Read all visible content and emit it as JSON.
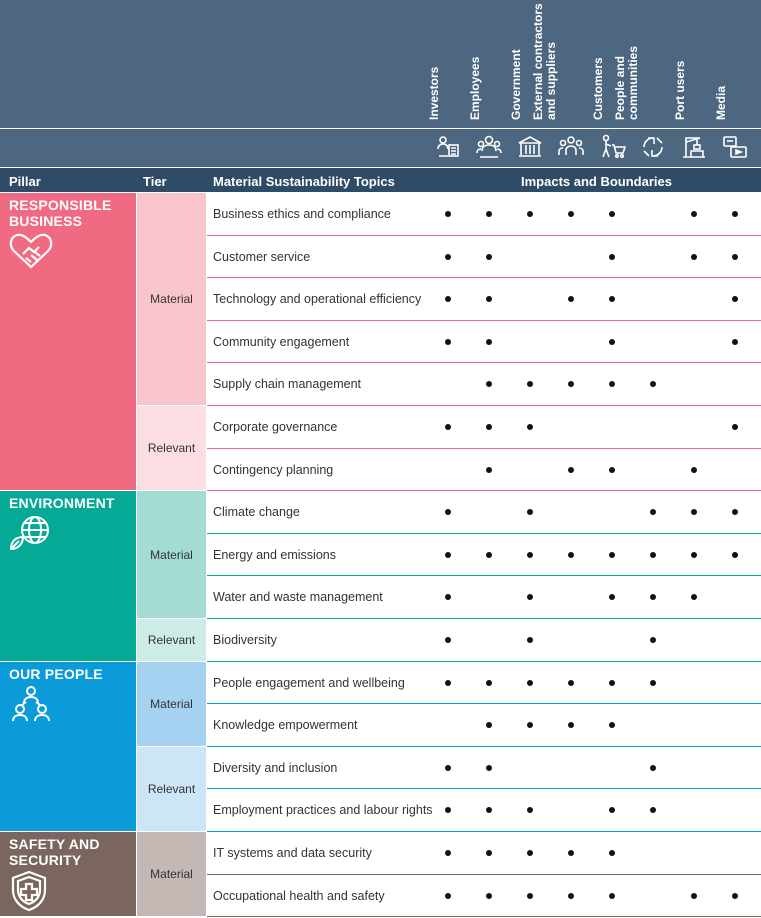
{
  "header": {
    "stakeholders": [
      {
        "label_lines": [
          "Investors"
        ],
        "icon": "investor-icon"
      },
      {
        "label_lines": [
          "Employees"
        ],
        "icon": "employees-icon"
      },
      {
        "label_lines": [
          "Government"
        ],
        "icon": "government-building-icon"
      },
      {
        "label_lines": [
          "External contractors",
          "and suppliers"
        ],
        "icon": "contractors-icon"
      },
      {
        "label_lines": [
          "Customers"
        ],
        "icon": "customer-cart-icon"
      },
      {
        "label_lines": [
          "People and",
          "communities"
        ],
        "icon": "community-hands-icon"
      },
      {
        "label_lines": [
          "Port users"
        ],
        "icon": "port-crane-icon"
      },
      {
        "label_lines": [
          "Media"
        ],
        "icon": "media-icon"
      }
    ],
    "col_pillar": "Pillar",
    "col_tier": "Tier",
    "col_topics": "Material Sustainability Topics",
    "col_impacts": "Impacts and Boundaries"
  },
  "colors": {
    "header_band": "#4d6781",
    "header_row": "#2f4c66"
  },
  "pillars": [
    {
      "title_lines": [
        "RESPONSIBLE",
        "BUSINESS"
      ],
      "icon": "heart-handshake-icon",
      "color": "#f06b81",
      "tiers": [
        {
          "label": "Material",
          "color": "#f9c5cd",
          "topics": [
            {
              "name": "Business ethics and compliance",
              "marks": [
                1,
                1,
                1,
                1,
                1,
                0,
                1,
                1
              ]
            },
            {
              "name": "Customer service",
              "marks": [
                1,
                1,
                0,
                0,
                1,
                0,
                1,
                1
              ]
            },
            {
              "name": "Technology and operational efficiency",
              "marks": [
                1,
                1,
                0,
                1,
                1,
                0,
                0,
                1
              ]
            },
            {
              "name": "Community engagement",
              "marks": [
                1,
                1,
                0,
                0,
                1,
                0,
                0,
                1
              ]
            },
            {
              "name": "Supply chain management",
              "marks": [
                0,
                1,
                1,
                1,
                1,
                1,
                0,
                0
              ]
            }
          ]
        },
        {
          "label": "Relevant",
          "color": "#fbdde2",
          "topics": [
            {
              "name": "Corporate governance",
              "marks": [
                1,
                1,
                1,
                0,
                0,
                0,
                0,
                1
              ]
            },
            {
              "name": "Contingency planning",
              "marks": [
                0,
                1,
                0,
                1,
                1,
                0,
                1,
                0
              ]
            }
          ]
        }
      ]
    },
    {
      "title_lines": [
        "ENVIRONMENT"
      ],
      "icon": "globe-leaf-icon",
      "color": "#06a896",
      "tiers": [
        {
          "label": "Material",
          "color": "#a3dcd3",
          "topics": [
            {
              "name": "Climate change",
              "marks": [
                1,
                0,
                1,
                0,
                0,
                1,
                1,
                1
              ]
            },
            {
              "name": "Energy and emissions",
              "marks": [
                1,
                1,
                1,
                1,
                1,
                1,
                1,
                1
              ]
            },
            {
              "name": "Water and waste management",
              "marks": [
                1,
                0,
                1,
                0,
                1,
                1,
                1,
                0
              ]
            }
          ]
        },
        {
          "label": "Relevant",
          "color": "#cdece7",
          "topics": [
            {
              "name": "Biodiversity",
              "marks": [
                1,
                0,
                1,
                0,
                0,
                1,
                0,
                0
              ]
            }
          ]
        }
      ]
    },
    {
      "title_lines": [
        "OUR PEOPLE"
      ],
      "icon": "people-group-icon",
      "color": "#0b9bd8",
      "tiers": [
        {
          "label": "Material",
          "color": "#a5d2f0",
          "topics": [
            {
              "name": "People engagement and wellbeing",
              "marks": [
                1,
                1,
                1,
                1,
                1,
                1,
                0,
                0
              ]
            },
            {
              "name": "Knowledge empowerment",
              "marks": [
                0,
                1,
                1,
                1,
                1,
                0,
                0,
                0
              ]
            }
          ]
        },
        {
          "label": "Relevant",
          "color": "#cce5f7",
          "topics": [
            {
              "name": "Diversity and inclusion",
              "marks": [
                1,
                1,
                0,
                0,
                0,
                1,
                0,
                0
              ]
            },
            {
              "name": "Employment practices and labour rights",
              "marks": [
                1,
                1,
                1,
                0,
                1,
                1,
                0,
                0
              ]
            }
          ]
        }
      ]
    },
    {
      "title_lines": [
        "SAFETY AND",
        "SECURITY"
      ],
      "icon": "shield-cross-icon",
      "color": "#7a665f",
      "tiers": [
        {
          "label": "Material",
          "color": "#c3b8b3",
          "topics": [
            {
              "name": "IT systems and data security",
              "marks": [
                1,
                1,
                1,
                1,
                1,
                0,
                0,
                0
              ]
            },
            {
              "name": "Occupational health and safety",
              "marks": [
                1,
                1,
                1,
                1,
                1,
                0,
                1,
                1
              ]
            }
          ]
        }
      ]
    }
  ]
}
